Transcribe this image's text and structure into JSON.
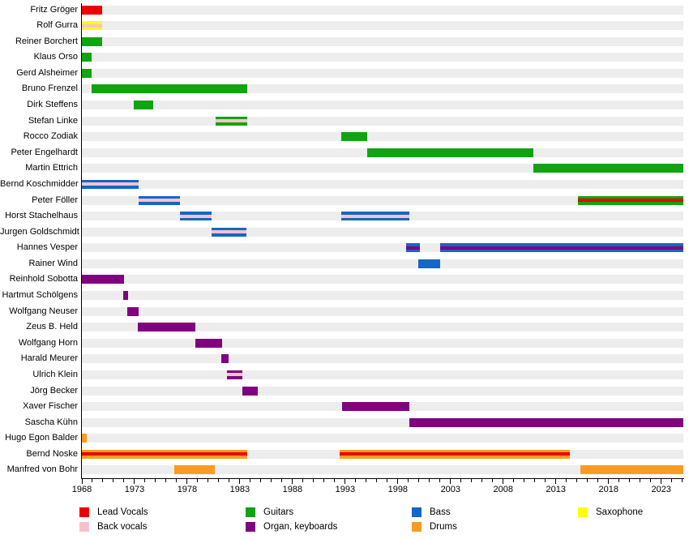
{
  "chart_data": {
    "type": "timeline",
    "title": "",
    "xlabel": "",
    "ylabel": "",
    "units": "year",
    "grid": false,
    "legend_position": "bottom",
    "axis": {
      "start": 1968,
      "end": 2025.1,
      "minor_tick_interval": 1,
      "label_interval": 5,
      "year_labels": [
        "1968",
        "1973",
        "1978",
        "1983",
        "1988",
        "1993",
        "1998",
        "2003",
        "2008",
        "2013",
        "2018",
        "2023"
      ]
    },
    "roles": {
      "lead_vocals": {
        "label": "Lead Vocals",
        "color": "#EE0000"
      },
      "back_vocals": {
        "label": "Back vocals",
        "color": "#F6C3CD"
      },
      "guitars": {
        "label": "Guitars",
        "color": "#12A312"
      },
      "organ_keyboards": {
        "label": "Organ, keyboards",
        "color": "#800080"
      },
      "bass": {
        "label": "Bass",
        "color": "#1467C4"
      },
      "drums": {
        "label": "Drums",
        "color": "#F99C21"
      },
      "saxophone": {
        "label": "Saxophone",
        "color": "#FFFF00"
      }
    },
    "legend_order": [
      [
        "lead_vocals",
        "back_vocals"
      ],
      [
        "guitars",
        "organ_keyboards"
      ],
      [
        "bass",
        "drums"
      ],
      [
        "saxophone"
      ]
    ],
    "row_background": "#EDEDED",
    "members": [
      {
        "name": "Fritz Gröger",
        "bars": [
          {
            "from": 1968,
            "to": 1969.9,
            "role": "lead_vocals"
          }
        ]
      },
      {
        "name": "Rolf Gurra",
        "bars": [
          {
            "from": 1968,
            "to": 1969.9,
            "role": "saxophone",
            "stripe": "back_vocals"
          }
        ]
      },
      {
        "name": "Reiner Borchert",
        "bars": [
          {
            "from": 1968,
            "to": 1969.9,
            "role": "guitars"
          }
        ]
      },
      {
        "name": "Klaus Orso",
        "bars": [
          {
            "from": 1968,
            "to": 1968.9,
            "role": "guitars"
          }
        ]
      },
      {
        "name": "Gerd Alsheimer",
        "bars": [
          {
            "from": 1968,
            "to": 1968.9,
            "role": "guitars"
          }
        ]
      },
      {
        "name": "Bruno Frenzel",
        "bars": [
          {
            "from": 1968.9,
            "to": 1983.7,
            "role": "guitars"
          }
        ]
      },
      {
        "name": "Dirk Steffens",
        "bars": [
          {
            "from": 1972.9,
            "to": 1974.8,
            "role": "guitars"
          }
        ]
      },
      {
        "name": "Stefan Linke",
        "bars": [
          {
            "from": 1980.7,
            "to": 1983.7,
            "role": "guitars",
            "stripe": "back_vocals"
          }
        ]
      },
      {
        "name": "Rocco Zodiak",
        "bars": [
          {
            "from": 1992.6,
            "to": 1995.1,
            "role": "guitars"
          }
        ]
      },
      {
        "name": "Peter Engelhardt",
        "bars": [
          {
            "from": 1995.1,
            "to": 2010.9,
            "role": "guitars"
          }
        ]
      },
      {
        "name": "Martin Ettrich",
        "bars": [
          {
            "from": 2010.9,
            "to": 2025.1,
            "role": "guitars"
          }
        ]
      },
      {
        "name": "Bernd Koschmidder",
        "bars": [
          {
            "from": 1968,
            "to": 1973.4,
            "role": "bass",
            "stripe": "back_vocals"
          }
        ]
      },
      {
        "name": "Peter Föller",
        "bars": [
          {
            "from": 1973.4,
            "to": 1977.3,
            "role": "bass",
            "stripe": "back_vocals"
          },
          {
            "from": 2015.1,
            "to": 2025.1,
            "role": "guitars",
            "stripe": "lead_vocals"
          }
        ]
      },
      {
        "name": "Horst Stachelhaus",
        "bars": [
          {
            "from": 1977.3,
            "to": 1980.3,
            "role": "bass",
            "stripe": "back_vocals"
          },
          {
            "from": 1992.6,
            "to": 1999.1,
            "role": "bass",
            "stripe": "back_vocals"
          }
        ]
      },
      {
        "name": "Jurgen Goldschmidt",
        "bars": [
          {
            "from": 1980.3,
            "to": 1983.6,
            "role": "bass",
            "stripe": "back_vocals"
          }
        ]
      },
      {
        "name": "Hannes Vesper",
        "bars": [
          {
            "from": 1998.8,
            "to": 2000.1,
            "role": "bass",
            "stripe": "organ_keyboards"
          },
          {
            "from": 2002,
            "to": 2025.1,
            "role": "bass",
            "stripe": "organ_keyboards"
          }
        ]
      },
      {
        "name": "Rainer Wind",
        "bars": [
          {
            "from": 1999.9,
            "to": 2002,
            "role": "bass"
          }
        ]
      },
      {
        "name": "Reinhold Sobotta",
        "bars": [
          {
            "from": 1968,
            "to": 1972,
            "role": "organ_keyboards"
          }
        ]
      },
      {
        "name": "Hartmut Schölgens",
        "bars": [
          {
            "from": 1971.9,
            "to": 1972.4,
            "role": "organ_keyboards"
          }
        ]
      },
      {
        "name": "Wolfgang Neuser",
        "bars": [
          {
            "from": 1972.3,
            "to": 1973.4,
            "role": "organ_keyboards"
          }
        ]
      },
      {
        "name": "Zeus B. Held",
        "bars": [
          {
            "from": 1973.3,
            "to": 1978.8,
            "role": "organ_keyboards"
          }
        ]
      },
      {
        "name": "Wolfgang Horn",
        "bars": [
          {
            "from": 1978.8,
            "to": 1981.3,
            "role": "organ_keyboards"
          }
        ]
      },
      {
        "name": "Harald Meurer",
        "bars": [
          {
            "from": 1981.2,
            "to": 1981.9,
            "role": "organ_keyboards"
          }
        ]
      },
      {
        "name": "Ulrich Klein",
        "bars": [
          {
            "from": 1981.8,
            "to": 1983.2,
            "role": "organ_keyboards",
            "stripe": "back_vocals"
          }
        ]
      },
      {
        "name": "Jörg Becker",
        "bars": [
          {
            "from": 1983.2,
            "to": 1984.7,
            "role": "organ_keyboards"
          }
        ]
      },
      {
        "name": "Xaver Fischer",
        "bars": [
          {
            "from": 1992.7,
            "to": 1999.1,
            "role": "organ_keyboards"
          }
        ]
      },
      {
        "name": "Sascha Kühn",
        "bars": [
          {
            "from": 1999.1,
            "to": 2025.1,
            "role": "organ_keyboards"
          }
        ]
      },
      {
        "name": "Hugo Egon Balder",
        "bars": [
          {
            "from": 1968,
            "to": 1968.5,
            "role": "drums"
          }
        ]
      },
      {
        "name": "Bernd Noske",
        "bars": [
          {
            "from": 1968,
            "to": 1983.7,
            "role": "drums",
            "stripe": "lead_vocals"
          },
          {
            "from": 1992.5,
            "to": 2014.3,
            "role": "drums",
            "stripe": "lead_vocals"
          }
        ]
      },
      {
        "name": "Manfred von Bohr",
        "bars": [
          {
            "from": 1976.8,
            "to": 1980.6,
            "role": "drums"
          },
          {
            "from": 2015.3,
            "to": 2025.1,
            "role": "drums"
          }
        ]
      }
    ]
  }
}
